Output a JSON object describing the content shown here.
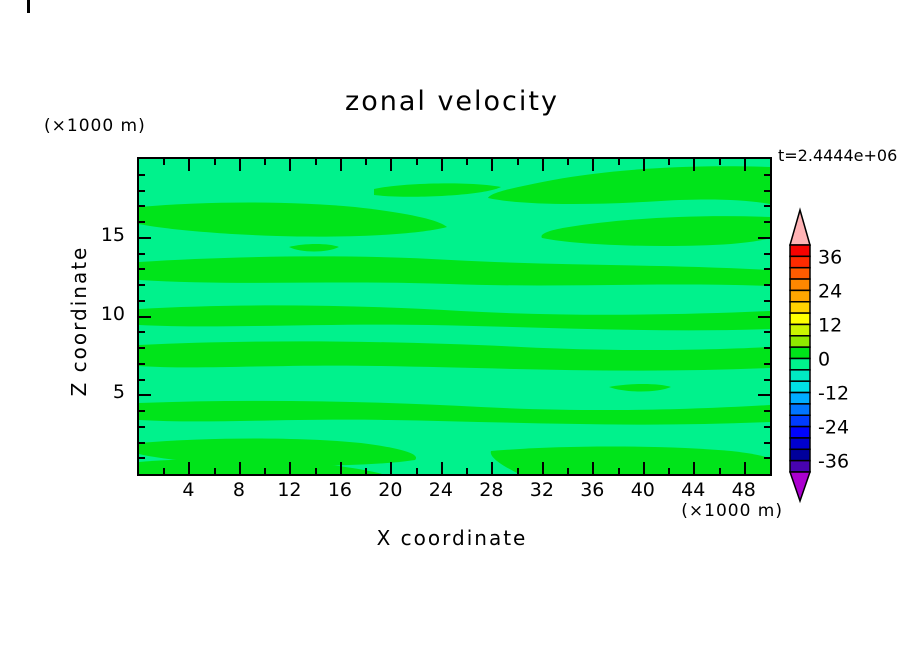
{
  "title": "zonal velocity",
  "time_label": "t=2.4444e+06",
  "axes": {
    "x": {
      "title": "X coordinate",
      "unit": "(×1000 m)",
      "tick_labels": [
        "4",
        "8",
        "12",
        "16",
        "20",
        "24",
        "28",
        "32",
        "36",
        "40",
        "44",
        "48"
      ],
      "tick_values": [
        4,
        8,
        12,
        16,
        20,
        24,
        28,
        32,
        36,
        40,
        44,
        48
      ],
      "minor_tick_values": [
        2,
        6,
        10,
        14,
        18,
        22,
        26,
        30,
        34,
        38,
        42,
        46
      ],
      "range": [
        0,
        50
      ]
    },
    "y": {
      "title": "Z coordinate",
      "unit": "(×1000 m)",
      "tick_labels": [
        "5",
        "10",
        "15"
      ],
      "tick_values": [
        5,
        10,
        15
      ],
      "minor_tick_values": [
        1,
        2,
        3,
        4,
        6,
        7,
        8,
        9,
        11,
        12,
        13,
        14,
        16,
        17,
        18,
        19
      ],
      "range": [
        0,
        20
      ]
    }
  },
  "plot": {
    "background_color": "#00F28C",
    "band_color": "#00E41A",
    "frame_color": "#000000"
  },
  "colorbar": {
    "segment_colors": [
      "#F80200",
      "#FF2B00",
      "#FF5C00",
      "#FF8700",
      "#FFA700",
      "#FFD300",
      "#FFFF00",
      "#CCF500",
      "#8FE900",
      "#00E41A",
      "#00F28C",
      "#00E9C3",
      "#00E0E6",
      "#00ACFF",
      "#0075FF",
      "#003CFF",
      "#0004FF",
      "#0000CD",
      "#00009B",
      "#4803B0"
    ],
    "segment_bounds_top_to_bottom": [
      40,
      36,
      32,
      28,
      24,
      20,
      16,
      12,
      8,
      4,
      0,
      -4,
      -8,
      -12,
      -16,
      -20,
      -24,
      -28,
      -32,
      -36,
      -40
    ],
    "top_arrow_color": "#FFB3B5",
    "bottom_arrow_color": "#AB00CF",
    "tick_labels": [
      "36",
      "24",
      "12",
      "0",
      "-12",
      "-24",
      "-36"
    ],
    "tick_boundary_indices": [
      1,
      4,
      7,
      10,
      13,
      16,
      19
    ]
  },
  "chart_data": {
    "type": "heatmap",
    "subtype": "filled-contour",
    "title": "zonal velocity",
    "annotation": "t=2.4444e+06",
    "xlabel": "X coordinate",
    "x_unit": "(×1000 m)",
    "ylabel": "Z coordinate",
    "y_unit": "(×1000 m)",
    "xlim": [
      0,
      50
    ],
    "ylim": [
      0,
      20
    ],
    "x_ticks": [
      4,
      8,
      12,
      16,
      20,
      24,
      28,
      32,
      36,
      40,
      44,
      48
    ],
    "y_ticks": [
      5,
      10,
      15
    ],
    "grid": false,
    "legend_position": "right-colorbar-with-end-arrows",
    "contour_interval": 4,
    "colorbar_labeled_levels": [
      36,
      24,
      12,
      0,
      -12,
      -24,
      -36
    ],
    "colorbar_range": [
      -40,
      40
    ],
    "visible_value_range": [
      -4,
      4
    ],
    "visible_levels": [
      {
        "range": [
          -4,
          0
        ],
        "color": "#00F28C",
        "role": "background fill"
      },
      {
        "range": [
          0,
          4
        ],
        "color": "#00E41A",
        "role": "horizontal wavy bands"
      }
    ],
    "description": "Filled contour field of zonal velocity over X (0-50 x1000 m) and Z (0-20 x1000 m). Only two contour fill levels are visible: a spring-green background (-4..0) with elongated horizontal green bands (0..4) spanning the domain."
  }
}
